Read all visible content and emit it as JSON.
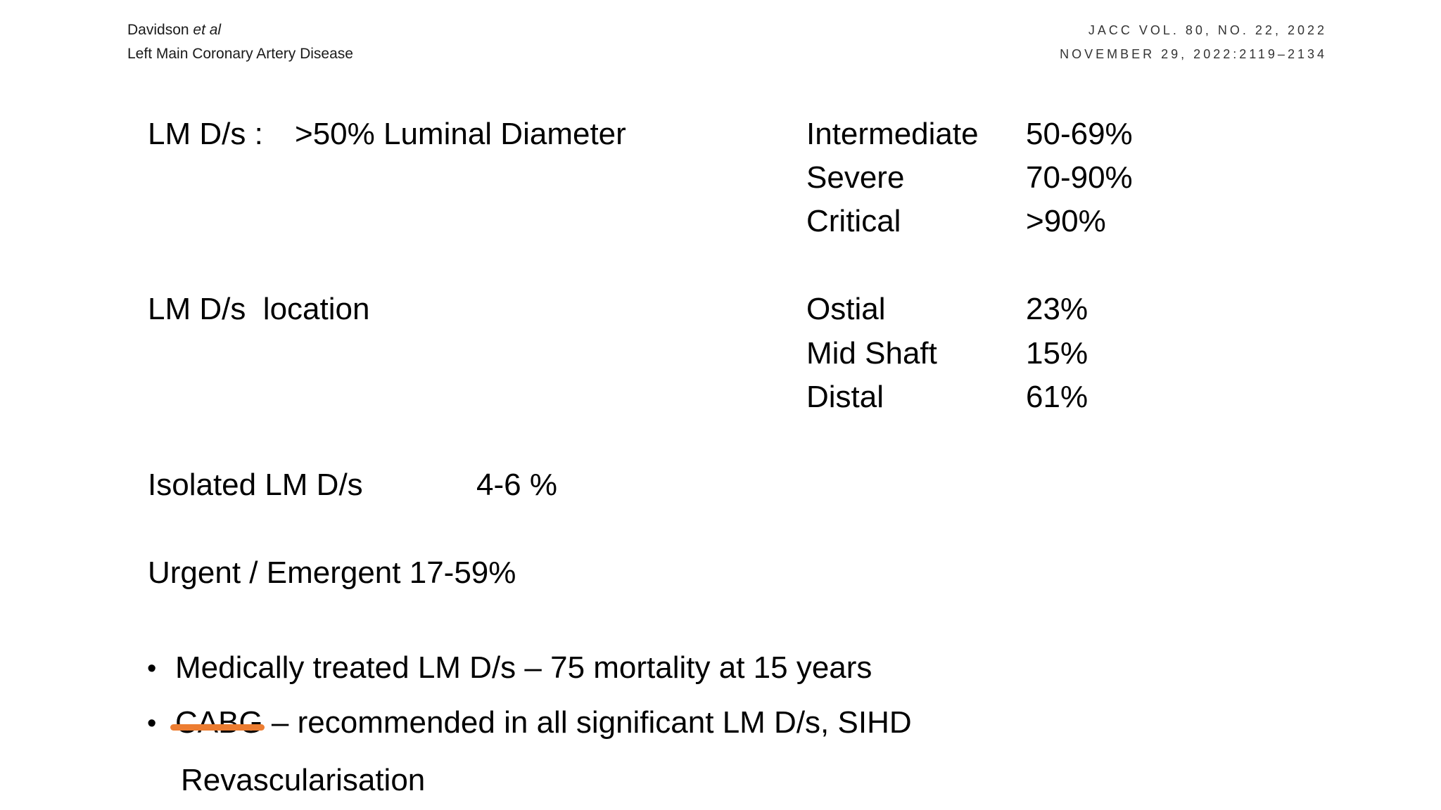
{
  "header": {
    "author": "Davidson",
    "author_suffix": "et al",
    "topic": "Left Main Coronary Artery Disease",
    "journal_line1": "JACC VOL. 80, NO. 22, 2022",
    "journal_line2": "NOVEMBER 29, 2022:2119–2134"
  },
  "definition": {
    "label": "LM D/s :",
    "value": ">50% Luminal Diameter",
    "severity": [
      {
        "name": "Intermediate",
        "range": "50-69%"
      },
      {
        "name": "Severe",
        "range": "70-90%"
      },
      {
        "name": "Critical",
        "range": ">90%"
      }
    ]
  },
  "location": {
    "label": "LM D/s  location",
    "items": [
      {
        "name": "Ostial",
        "value": "23%"
      },
      {
        "name": "Mid Shaft",
        "value": "15%"
      },
      {
        "name": "Distal",
        "value": "61%"
      }
    ]
  },
  "isolated": {
    "label": "Isolated LM D/s",
    "value": "4-6 %"
  },
  "urgent": {
    "text": "Urgent / Emergent 17-59%"
  },
  "bullets": {
    "item1": "Medically treated LM D/s – 75 mortality at 15 years",
    "item2_struck": "CABG",
    "item2_rest": " – recommended in all significant LM D/s, SIHD",
    "item2_cont": "Revascularisation"
  },
  "colors": {
    "strike": "#ED7D31"
  }
}
